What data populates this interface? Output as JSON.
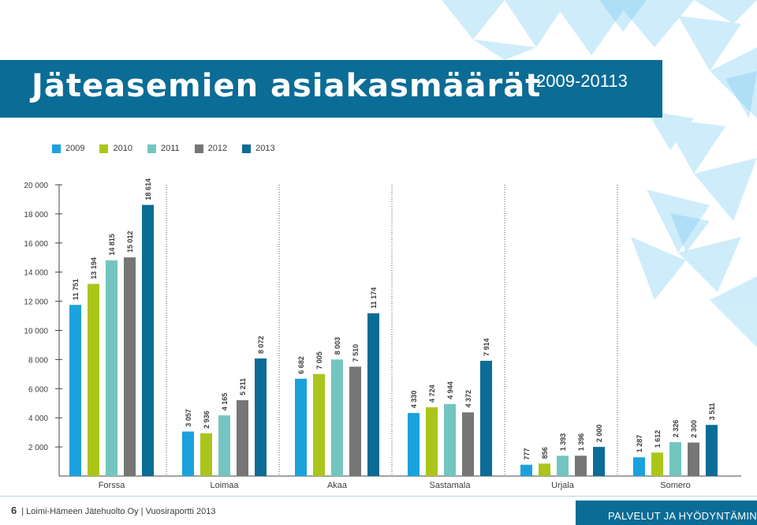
{
  "header": {
    "title": "Jäteasemien asiakasmäärät",
    "subtitle": "2009-20113"
  },
  "footer": {
    "page_number": "6",
    "publisher": "| Loimi-Hämeen Jätehuolto Oy | Vuosiraportti 2013",
    "section": "PALVELUT JA HYÖDYNTÄMINEN"
  },
  "colors": {
    "banner": "#0b6c96",
    "s2009": "#1ba2dd",
    "s2010": "#acc51b",
    "s2011": "#74c5c0",
    "s2012": "#767676",
    "s2013": "#0b6c96"
  },
  "chart_data": {
    "type": "bar",
    "title": "",
    "xlabel": "",
    "ylabel": "",
    "ylim": [
      0,
      20000
    ],
    "yticks": [
      2000,
      4000,
      6000,
      8000,
      10000,
      12000,
      14000,
      16000,
      18000,
      20000
    ],
    "ytick_labels": [
      "2 000",
      "4 000",
      "6 000",
      "8 000",
      "10 000",
      "12 000",
      "14 000",
      "16 000",
      "18 000",
      "20 000"
    ],
    "categories": [
      "Forssa",
      "Loimaa",
      "Akaa",
      "Sastamala",
      "Urjala",
      "Somero"
    ],
    "legend_position": "top-left",
    "grid": false,
    "series": [
      {
        "name": "2009",
        "color": "#1ba2dd",
        "values": [
          11751,
          3057,
          6682,
          4330,
          777,
          1287
        ],
        "labels": [
          "11 751",
          "3 057",
          "6 682",
          "4 330",
          "777",
          "1 287"
        ]
      },
      {
        "name": "2010",
        "color": "#acc51b",
        "values": [
          13194,
          2936,
          7005,
          4724,
          856,
          1612
        ],
        "labels": [
          "13 194",
          "2 936",
          "7 005",
          "4 724",
          "856",
          "1 612"
        ]
      },
      {
        "name": "2011",
        "color": "#74c5c0",
        "values": [
          14815,
          4165,
          8003,
          4944,
          1393,
          2326
        ],
        "labels": [
          "14 815",
          "4 165",
          "8 003",
          "4 944",
          "1 393",
          "2 326"
        ]
      },
      {
        "name": "2012",
        "color": "#767676",
        "values": [
          15012,
          5211,
          7510,
          4372,
          1396,
          2300
        ],
        "labels": [
          "15 012",
          "5 211",
          "7 510",
          "4 372",
          "1 396",
          "2 300"
        ]
      },
      {
        "name": "2013",
        "color": "#0b6c96",
        "values": [
          18614,
          8072,
          11174,
          7914,
          2000,
          3511
        ],
        "labels": [
          "18 614",
          "8 072",
          "11 174",
          "7 914",
          "2 000",
          "3 511"
        ]
      }
    ]
  }
}
